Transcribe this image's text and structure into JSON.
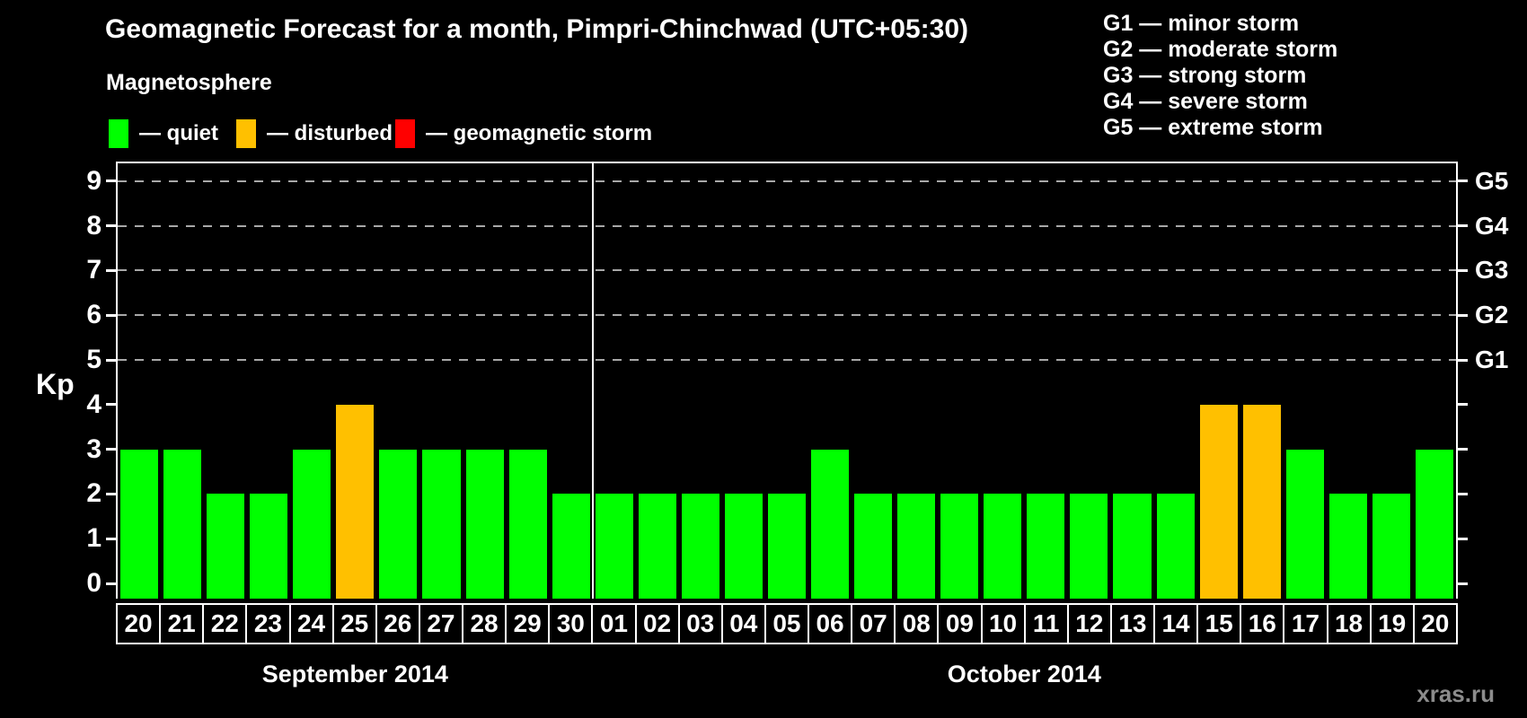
{
  "title": "Geomagnetic Forecast for a month, Pimpri-Chinchwad (UTC+05:30)",
  "magnetosphere_heading": "Magnetosphere",
  "legend": {
    "items": [
      {
        "key": "quiet",
        "label": "— quiet",
        "color": "#00ff00"
      },
      {
        "key": "disturbed",
        "label": "— disturbed",
        "color": "#ffc000"
      },
      {
        "key": "storm",
        "label": "— geomagnetic storm",
        "color": "#ff0000"
      }
    ]
  },
  "g_scale_legend": {
    "items": [
      {
        "label": "G1 — minor storm"
      },
      {
        "label": "G2 — moderate storm"
      },
      {
        "label": "G3 — strong storm"
      },
      {
        "label": "G4 — severe storm"
      },
      {
        "label": "G5 — extreme storm"
      }
    ]
  },
  "axes": {
    "y_left_label": "Kp",
    "y_left_ticks": [
      "0",
      "1",
      "2",
      "3",
      "4",
      "5",
      "6",
      "7",
      "8",
      "9"
    ],
    "y_right_labels": [
      {
        "level": 5,
        "label": "G1"
      },
      {
        "level": 6,
        "label": "G2"
      },
      {
        "level": 7,
        "label": "G3"
      },
      {
        "level": 8,
        "label": "G4"
      },
      {
        "level": 9,
        "label": "G5"
      }
    ]
  },
  "watermark": "xras.ru",
  "colors": {
    "quiet": "#00ff00",
    "disturbed": "#ffc000",
    "storm": "#ff0000",
    "grid": "#a8a8a8",
    "axis": "#ffffff",
    "background": "#000000",
    "watermark": "#8c8c8c"
  },
  "chart_data": {
    "type": "bar",
    "title": "Geomagnetic Forecast for a month, Pimpri-Chinchwad (UTC+05:30)",
    "xlabel": "",
    "ylabel": "Kp",
    "ylim": [
      0,
      9
    ],
    "grid": true,
    "gridlines_at": [
      5,
      6,
      7,
      8,
      9
    ],
    "legend_position": "top-left",
    "months": [
      {
        "label": "September 2014",
        "days": [
          "20",
          "21",
          "22",
          "23",
          "24",
          "25",
          "26",
          "27",
          "28",
          "29",
          "30"
        ]
      },
      {
        "label": "October 2014",
        "days": [
          "01",
          "02",
          "03",
          "04",
          "05",
          "06",
          "07",
          "08",
          "09",
          "10",
          "11",
          "12",
          "13",
          "14",
          "15",
          "16",
          "17",
          "18",
          "19",
          "20"
        ]
      }
    ],
    "bars": [
      {
        "month": "September 2014",
        "day": "20",
        "kp": 3,
        "status": "quiet"
      },
      {
        "month": "September 2014",
        "day": "21",
        "kp": 3,
        "status": "quiet"
      },
      {
        "month": "September 2014",
        "day": "22",
        "kp": 2,
        "status": "quiet"
      },
      {
        "month": "September 2014",
        "day": "23",
        "kp": 2,
        "status": "quiet"
      },
      {
        "month": "September 2014",
        "day": "24",
        "kp": 3,
        "status": "quiet"
      },
      {
        "month": "September 2014",
        "day": "25",
        "kp": 4,
        "status": "disturbed"
      },
      {
        "month": "September 2014",
        "day": "26",
        "kp": 3,
        "status": "quiet"
      },
      {
        "month": "September 2014",
        "day": "27",
        "kp": 3,
        "status": "quiet"
      },
      {
        "month": "September 2014",
        "day": "28",
        "kp": 3,
        "status": "quiet"
      },
      {
        "month": "September 2014",
        "day": "29",
        "kp": 3,
        "status": "quiet"
      },
      {
        "month": "September 2014",
        "day": "30",
        "kp": 2,
        "status": "quiet"
      },
      {
        "month": "October 2014",
        "day": "01",
        "kp": 2,
        "status": "quiet"
      },
      {
        "month": "October 2014",
        "day": "02",
        "kp": 2,
        "status": "quiet"
      },
      {
        "month": "October 2014",
        "day": "03",
        "kp": 2,
        "status": "quiet"
      },
      {
        "month": "October 2014",
        "day": "04",
        "kp": 2,
        "status": "quiet"
      },
      {
        "month": "October 2014",
        "day": "05",
        "kp": 2,
        "status": "quiet"
      },
      {
        "month": "October 2014",
        "day": "06",
        "kp": 3,
        "status": "quiet"
      },
      {
        "month": "October 2014",
        "day": "07",
        "kp": 2,
        "status": "quiet"
      },
      {
        "month": "October 2014",
        "day": "08",
        "kp": 2,
        "status": "quiet"
      },
      {
        "month": "October 2014",
        "day": "09",
        "kp": 2,
        "status": "quiet"
      },
      {
        "month": "October 2014",
        "day": "10",
        "kp": 2,
        "status": "quiet"
      },
      {
        "month": "October 2014",
        "day": "11",
        "kp": 2,
        "status": "quiet"
      },
      {
        "month": "October 2014",
        "day": "12",
        "kp": 2,
        "status": "quiet"
      },
      {
        "month": "October 2014",
        "day": "13",
        "kp": 2,
        "status": "quiet"
      },
      {
        "month": "October 2014",
        "day": "14",
        "kp": 2,
        "status": "quiet"
      },
      {
        "month": "October 2014",
        "day": "15",
        "kp": 4,
        "status": "disturbed"
      },
      {
        "month": "October 2014",
        "day": "16",
        "kp": 4,
        "status": "disturbed"
      },
      {
        "month": "October 2014",
        "day": "17",
        "kp": 3,
        "status": "quiet"
      },
      {
        "month": "October 2014",
        "day": "18",
        "kp": 2,
        "status": "quiet"
      },
      {
        "month": "October 2014",
        "day": "19",
        "kp": 2,
        "status": "quiet"
      },
      {
        "month": "October 2014",
        "day": "20",
        "kp": 3,
        "status": "quiet"
      }
    ]
  }
}
